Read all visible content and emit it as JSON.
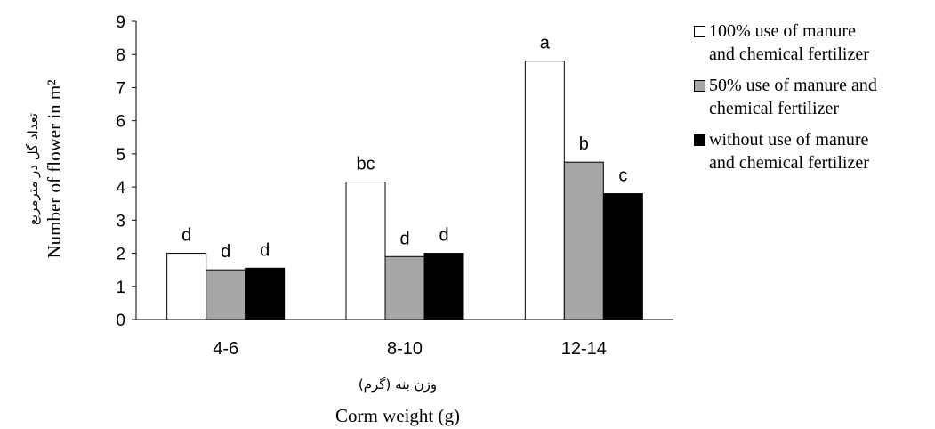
{
  "chart_data": {
    "type": "bar",
    "categories": [
      "4-6",
      "8-10",
      "12-14"
    ],
    "series": [
      {
        "name": "100% use of manure and chemical fertilizer",
        "name_lines": [
          "100% use of manure",
          "and chemical fertilizer"
        ],
        "color": "#ffffff",
        "values": [
          2.0,
          4.15,
          7.8
        ],
        "labels": [
          "d",
          "bc",
          "a"
        ]
      },
      {
        "name": "50% use of manure and chemical fertilizer",
        "name_lines": [
          "50% use of manure and",
          "chemical fertilizer"
        ],
        "color": "#a6a6a6",
        "values": [
          1.5,
          1.9,
          4.75
        ],
        "labels": [
          "d",
          "d",
          "b"
        ]
      },
      {
        "name": "without use of manure and chemical fertilizer",
        "name_lines": [
          "without use of manure",
          "and chemical fertilizer"
        ],
        "color": "#000000",
        "values": [
          1.55,
          2.0,
          3.8
        ],
        "labels": [
          "d",
          "d",
          "c"
        ]
      }
    ],
    "ylim": [
      0,
      9
    ],
    "yticks": [
      "0",
      "1",
      "2",
      "3",
      "4",
      "5",
      "6",
      "7",
      "8",
      "9"
    ],
    "xlabel": "Corm weight (g)",
    "xlabel_alt": "وزن بنه (گرم)",
    "ylabel": "Number of flower in m²",
    "ylabel_alt": "تعداد گل در مترمربع",
    "grid": false,
    "legend": "right"
  }
}
